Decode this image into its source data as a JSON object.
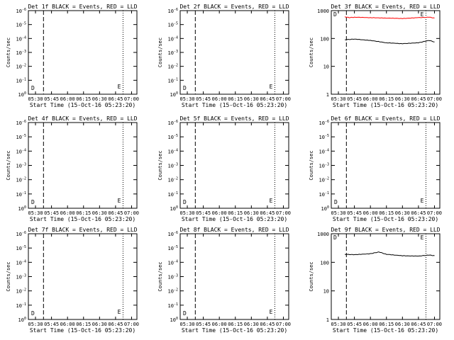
{
  "common": {
    "x_ticks": [
      "05:30",
      "05:45",
      "06:00",
      "06:15",
      "06:30",
      "06:45",
      "07:00"
    ],
    "x_label": "Start Time (15-Oct-16 05:23:20)",
    "y_label": "Counts/sec",
    "colors": {
      "events": "#000000",
      "lld": "#ff0000",
      "axis": "#000000",
      "background": "#ffffff"
    }
  },
  "chart_data": [
    {
      "type": "line",
      "title": "Det 1f BLACK = Events, RED = LLD",
      "y_scale": "log",
      "y_ticks": [
        "10^0",
        "10^-1",
        "10^-2",
        "10^-3",
        "10^-4",
        "10^-5",
        "10^-6"
      ],
      "annotations": [
        "D",
        "E"
      ],
      "series": []
    },
    {
      "type": "line",
      "title": "Det 2f BLACK = Events, RED = LLD",
      "y_scale": "log",
      "y_ticks": [
        "10^0",
        "10^-1",
        "10^-2",
        "10^-3",
        "10^-4",
        "10^-5",
        "10^-6"
      ],
      "annotations": [
        "D",
        "E"
      ],
      "series": []
    },
    {
      "type": "line",
      "title": "Det 3f BLACK = Events, RED = LLD",
      "y_scale": "log",
      "y_ticks": [
        "1",
        "10",
        "100",
        "1000"
      ],
      "annotations": [
        "D",
        "E"
      ],
      "series": [
        {
          "color": "#ff0000",
          "x": [
            "05:36",
            "05:40",
            "05:45",
            "06:00",
            "06:15",
            "06:30",
            "06:45",
            "06:55",
            "07:00"
          ],
          "values": [
            600,
            560,
            580,
            560,
            540,
            520,
            560,
            580,
            540
          ]
        },
        {
          "color": "#000000",
          "x": [
            "05:36",
            "05:45",
            "06:00",
            "06:15",
            "06:30",
            "06:45",
            "06:55",
            "07:00"
          ],
          "values": [
            90,
            95,
            85,
            70,
            65,
            70,
            85,
            75
          ]
        }
      ]
    },
    {
      "type": "line",
      "title": "Det 4f BLACK = Events, RED = LLD",
      "y_scale": "log",
      "y_ticks": [
        "10^0",
        "10^-1",
        "10^-2",
        "10^-3",
        "10^-4",
        "10^-5",
        "10^-6"
      ],
      "annotations": [
        "D",
        "E"
      ],
      "series": []
    },
    {
      "type": "line",
      "title": "Det 5f BLACK = Events, RED = LLD",
      "y_scale": "log",
      "y_ticks": [
        "10^0",
        "10^-1",
        "10^-2",
        "10^-3",
        "10^-4",
        "10^-5",
        "10^-6"
      ],
      "annotations": [
        "D",
        "E"
      ],
      "series": []
    },
    {
      "type": "line",
      "title": "Det 6f BLACK = Events, RED = LLD",
      "y_scale": "log",
      "y_ticks": [
        "10^0",
        "10^-1",
        "10^-2",
        "10^-3",
        "10^-4",
        "10^-5",
        "10^-6"
      ],
      "annotations": [
        "D",
        "E"
      ],
      "series": []
    },
    {
      "type": "line",
      "title": "Det 7f BLACK = Events, RED = LLD",
      "y_scale": "log",
      "y_ticks": [
        "10^0",
        "10^-1",
        "10^-2",
        "10^-3",
        "10^-4",
        "10^-5",
        "10^-6"
      ],
      "annotations": [
        "D",
        "E"
      ],
      "series": []
    },
    {
      "type": "line",
      "title": "Det 8f BLACK = Events, RED = LLD",
      "y_scale": "log",
      "y_ticks": [
        "10^0",
        "10^-1",
        "10^-2",
        "10^-3",
        "10^-4",
        "10^-5",
        "10^-6"
      ],
      "annotations": [
        "D",
        "E"
      ],
      "series": []
    },
    {
      "type": "line",
      "title": "Det 9f BLACK = Events, RED = LLD",
      "y_scale": "log",
      "y_ticks": [
        "1",
        "10",
        "100",
        "1000"
      ],
      "annotations": [
        "D",
        "E"
      ],
      "series": [
        {
          "color": "#000000",
          "x": [
            "05:36",
            "05:45",
            "06:00",
            "06:08",
            "06:15",
            "06:30",
            "06:45",
            "06:55",
            "07:00"
          ],
          "values": [
            190,
            185,
            200,
            230,
            190,
            170,
            165,
            180,
            170
          ]
        }
      ]
    }
  ]
}
